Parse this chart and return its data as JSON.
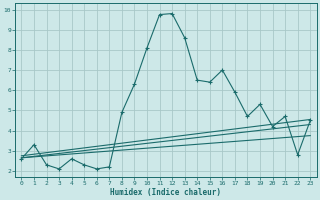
{
  "xlabel": "Humidex (Indice chaleur)",
  "bg_color": "#cde8e8",
  "grid_color": "#a8c8c8",
  "line_color": "#1a6b6b",
  "xlim": [
    -0.5,
    23.5
  ],
  "ylim": [
    1.7,
    10.3
  ],
  "xticks": [
    0,
    1,
    2,
    3,
    4,
    5,
    6,
    7,
    8,
    9,
    10,
    11,
    12,
    13,
    14,
    15,
    16,
    17,
    18,
    19,
    20,
    21,
    22,
    23
  ],
  "yticks": [
    2,
    3,
    4,
    5,
    6,
    7,
    8,
    9,
    10
  ],
  "main_line_x": [
    0,
    1,
    2,
    3,
    4,
    5,
    6,
    7,
    8,
    9,
    10,
    11,
    12,
    13,
    14,
    15,
    16,
    17,
    18,
    19,
    20,
    21,
    22,
    23
  ],
  "main_line_y": [
    2.6,
    3.3,
    2.3,
    2.1,
    2.6,
    2.3,
    2.1,
    2.2,
    4.9,
    6.3,
    8.1,
    9.75,
    9.8,
    8.6,
    6.5,
    6.4,
    7.0,
    5.9,
    4.7,
    5.3,
    4.2,
    4.7,
    2.8,
    4.5
  ],
  "line2_x": [
    0,
    23
  ],
  "line2_y": [
    2.65,
    4.3
  ],
  "line3_x": [
    0,
    23
  ],
  "line3_y": [
    2.65,
    3.75
  ],
  "line4_x": [
    0,
    23
  ],
  "line4_y": [
    2.75,
    4.55
  ]
}
